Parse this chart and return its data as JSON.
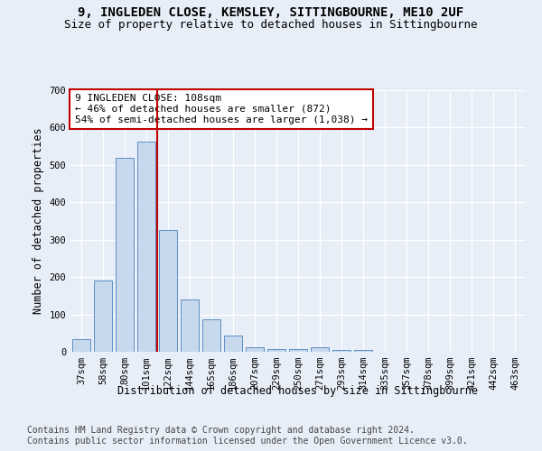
{
  "title1": "9, INGLEDEN CLOSE, KEMSLEY, SITTINGBOURNE, ME10 2UF",
  "title2": "Size of property relative to detached houses in Sittingbourne",
  "xlabel": "Distribution of detached houses by size in Sittingbourne",
  "ylabel": "Number of detached properties",
  "categories": [
    "37sqm",
    "58sqm",
    "80sqm",
    "101sqm",
    "122sqm",
    "144sqm",
    "165sqm",
    "186sqm",
    "207sqm",
    "229sqm",
    "250sqm",
    "271sqm",
    "293sqm",
    "314sqm",
    "335sqm",
    "357sqm",
    "378sqm",
    "399sqm",
    "421sqm",
    "442sqm",
    "463sqm"
  ],
  "values": [
    33,
    190,
    518,
    562,
    327,
    140,
    86,
    44,
    13,
    8,
    8,
    11,
    5,
    4,
    0,
    0,
    0,
    0,
    0,
    0,
    0
  ],
  "bar_color": "#c8d8ed",
  "bar_edge_color": "#5b8ec4",
  "vline_x": 3.5,
  "vline_color": "#c00000",
  "annotation_text": "9 INGLEDEN CLOSE: 108sqm\n← 46% of detached houses are smaller (872)\n54% of semi-detached houses are larger (1,038) →",
  "annotation_box_color": "#ffffff",
  "annotation_box_edge_color": "#c00000",
  "ylim": [
    0,
    700
  ],
  "yticks": [
    0,
    100,
    200,
    300,
    400,
    500,
    600,
    700
  ],
  "footer1": "Contains HM Land Registry data © Crown copyright and database right 2024.",
  "footer2": "Contains public sector information licensed under the Open Government Licence v3.0.",
  "bg_color": "#e8eef8",
  "plot_bg_color": "#e8eef8",
  "grid_color": "#ffffff",
  "title_fontsize": 10,
  "subtitle_fontsize": 9,
  "axis_label_fontsize": 8.5,
  "tick_fontsize": 7.5,
  "annotation_fontsize": 8,
  "footer_fontsize": 7
}
